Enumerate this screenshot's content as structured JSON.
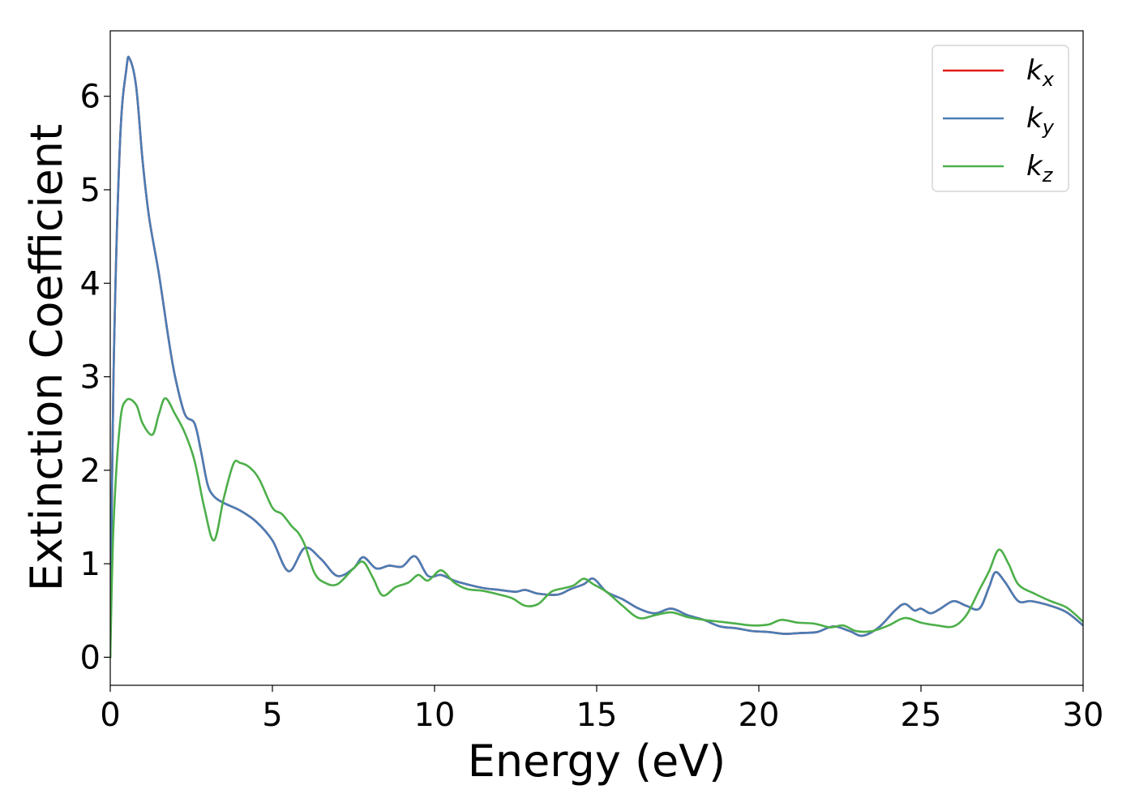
{
  "chart_data": {
    "type": "line",
    "title": "",
    "xlabel": "Energy (eV)",
    "ylabel": "Extinction Coefficient",
    "xlim": [
      0,
      30
    ],
    "ylim": [
      -0.3,
      6.7
    ],
    "xticks": [
      "0",
      "5",
      "10",
      "15",
      "20",
      "25",
      "30"
    ],
    "yticks": [
      "0",
      "1",
      "2",
      "3",
      "4",
      "5",
      "6"
    ],
    "grid": false,
    "legend_position": "top-right",
    "series": [
      {
        "name": "k",
        "subscript": "x",
        "color": "#e41a1c",
        "x": [
          0,
          0.1,
          0.3,
          0.5,
          0.6,
          0.8,
          1.0,
          1.2,
          1.5,
          1.8,
          2.0,
          2.3,
          2.6,
          2.8,
          3.0,
          3.2,
          3.5,
          4.0,
          4.5,
          5.0,
          5.5,
          6.0,
          6.5,
          7.0,
          7.5,
          7.8,
          8.2,
          8.6,
          9.0,
          9.4,
          9.8,
          10.2,
          10.6,
          11.0,
          11.5,
          12.0,
          12.5,
          12.8,
          13.2,
          13.8,
          14.2,
          14.6,
          14.9,
          15.3,
          15.8,
          16.3,
          16.8,
          17.3,
          17.8,
          18.3,
          18.8,
          19.3,
          19.8,
          20.3,
          20.8,
          21.3,
          21.8,
          22.3,
          22.8,
          23.2,
          23.7,
          24.2,
          24.5,
          24.8,
          25.0,
          25.3,
          25.6,
          26.0,
          26.4,
          26.8,
          27.1,
          27.3,
          27.6,
          28.0,
          28.4,
          29.0,
          29.5,
          30.0
        ],
        "y": [
          0.0,
          3.0,
          5.5,
          6.3,
          6.4,
          6.1,
          5.3,
          4.7,
          4.1,
          3.4,
          3.0,
          2.6,
          2.5,
          2.2,
          1.85,
          1.72,
          1.65,
          1.57,
          1.45,
          1.25,
          0.92,
          1.17,
          1.05,
          0.87,
          0.95,
          1.07,
          0.95,
          0.98,
          0.97,
          1.08,
          0.87,
          0.88,
          0.82,
          0.78,
          0.74,
          0.72,
          0.7,
          0.72,
          0.68,
          0.67,
          0.73,
          0.78,
          0.84,
          0.7,
          0.62,
          0.52,
          0.47,
          0.52,
          0.45,
          0.4,
          0.33,
          0.31,
          0.28,
          0.27,
          0.25,
          0.26,
          0.27,
          0.33,
          0.28,
          0.23,
          0.32,
          0.5,
          0.57,
          0.5,
          0.52,
          0.47,
          0.52,
          0.6,
          0.55,
          0.52,
          0.75,
          0.91,
          0.8,
          0.6,
          0.6,
          0.55,
          0.48,
          0.34
        ]
      },
      {
        "name": "k",
        "subscript": "y",
        "color": "#4a7db5",
        "x": [
          0,
          0.1,
          0.3,
          0.5,
          0.6,
          0.8,
          1.0,
          1.2,
          1.5,
          1.8,
          2.0,
          2.3,
          2.6,
          2.8,
          3.0,
          3.2,
          3.5,
          4.0,
          4.5,
          5.0,
          5.5,
          6.0,
          6.5,
          7.0,
          7.5,
          7.8,
          8.2,
          8.6,
          9.0,
          9.4,
          9.8,
          10.2,
          10.6,
          11.0,
          11.5,
          12.0,
          12.5,
          12.8,
          13.2,
          13.8,
          14.2,
          14.6,
          14.9,
          15.3,
          15.8,
          16.3,
          16.8,
          17.3,
          17.8,
          18.3,
          18.8,
          19.3,
          19.8,
          20.3,
          20.8,
          21.3,
          21.8,
          22.3,
          22.8,
          23.2,
          23.7,
          24.2,
          24.5,
          24.8,
          25.0,
          25.3,
          25.6,
          26.0,
          26.4,
          26.8,
          27.1,
          27.3,
          27.6,
          28.0,
          28.4,
          29.0,
          29.5,
          30.0
        ],
        "y": [
          0.0,
          3.0,
          5.5,
          6.3,
          6.4,
          6.1,
          5.3,
          4.7,
          4.1,
          3.4,
          3.0,
          2.6,
          2.5,
          2.2,
          1.85,
          1.72,
          1.65,
          1.57,
          1.45,
          1.25,
          0.92,
          1.17,
          1.05,
          0.87,
          0.95,
          1.07,
          0.95,
          0.98,
          0.97,
          1.08,
          0.87,
          0.88,
          0.82,
          0.78,
          0.74,
          0.72,
          0.7,
          0.72,
          0.68,
          0.67,
          0.73,
          0.78,
          0.84,
          0.7,
          0.62,
          0.52,
          0.47,
          0.52,
          0.45,
          0.4,
          0.33,
          0.31,
          0.28,
          0.27,
          0.25,
          0.26,
          0.27,
          0.33,
          0.28,
          0.23,
          0.32,
          0.5,
          0.57,
          0.5,
          0.52,
          0.47,
          0.52,
          0.6,
          0.55,
          0.52,
          0.75,
          0.91,
          0.8,
          0.6,
          0.6,
          0.55,
          0.48,
          0.34
        ]
      },
      {
        "name": "k",
        "subscript": "z",
        "color": "#4daf4a",
        "x": [
          0,
          0.1,
          0.3,
          0.5,
          0.8,
          1.0,
          1.3,
          1.5,
          1.7,
          2.0,
          2.3,
          2.6,
          2.9,
          3.2,
          3.5,
          3.8,
          4.0,
          4.3,
          4.6,
          5.0,
          5.3,
          5.6,
          5.8,
          6.0,
          6.3,
          6.6,
          7.0,
          7.5,
          7.8,
          8.1,
          8.4,
          8.8,
          9.2,
          9.5,
          9.8,
          10.2,
          10.6,
          11.0,
          11.5,
          12.0,
          12.4,
          12.8,
          13.2,
          13.6,
          14.0,
          14.3,
          14.6,
          14.9,
          15.3,
          15.8,
          16.3,
          16.8,
          17.3,
          17.8,
          18.3,
          18.8,
          19.3,
          19.8,
          20.3,
          20.7,
          21.2,
          21.7,
          22.2,
          22.6,
          23.0,
          23.5,
          24.0,
          24.5,
          25.0,
          25.5,
          26.0,
          26.4,
          26.8,
          27.1,
          27.4,
          27.7,
          28.0,
          28.5,
          29.0,
          29.5,
          30.0
        ],
        "y": [
          0.0,
          1.4,
          2.5,
          2.75,
          2.7,
          2.5,
          2.38,
          2.6,
          2.77,
          2.6,
          2.4,
          2.1,
          1.6,
          1.25,
          1.7,
          2.07,
          2.08,
          2.03,
          1.9,
          1.6,
          1.53,
          1.4,
          1.33,
          1.2,
          0.9,
          0.8,
          0.78,
          0.95,
          1.02,
          0.85,
          0.66,
          0.75,
          0.8,
          0.88,
          0.82,
          0.93,
          0.8,
          0.73,
          0.71,
          0.67,
          0.63,
          0.55,
          0.57,
          0.7,
          0.74,
          0.77,
          0.84,
          0.78,
          0.7,
          0.55,
          0.42,
          0.45,
          0.48,
          0.43,
          0.4,
          0.38,
          0.36,
          0.34,
          0.35,
          0.4,
          0.37,
          0.36,
          0.32,
          0.34,
          0.28,
          0.28,
          0.34,
          0.42,
          0.37,
          0.34,
          0.33,
          0.45,
          0.72,
          0.92,
          1.15,
          1.0,
          0.78,
          0.68,
          0.6,
          0.53,
          0.38
        ]
      }
    ]
  }
}
